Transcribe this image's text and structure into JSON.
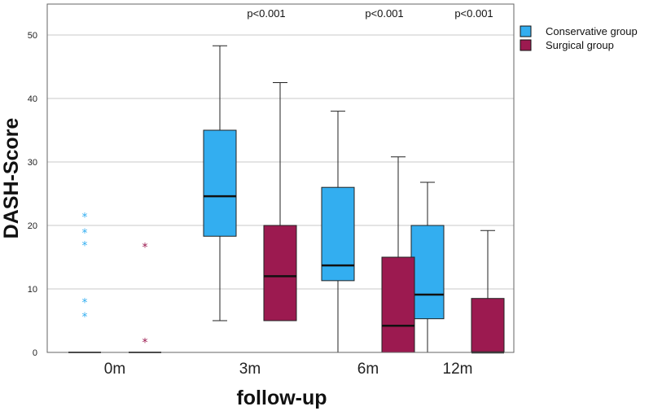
{
  "chart_data": {
    "type": "boxplot",
    "xlabel": "follow-up",
    "ylabel": "DASH-Score",
    "ylim": [
      0,
      55
    ],
    "yticks": [
      0,
      10,
      20,
      30,
      40,
      50
    ],
    "ytick_labels": [
      "0",
      "10",
      "20",
      "30",
      "40",
      "50"
    ],
    "grid": true,
    "legend_position": "top-right",
    "categories": [
      "0m",
      "3m",
      "6m",
      "12m"
    ],
    "annotations": [
      "",
      "p<0.001",
      "p<0.001",
      "p<0.001"
    ],
    "series": [
      {
        "name": "Conservative group",
        "color": "#33aef0",
        "boxes": [
          {
            "min": 0,
            "q1": 0,
            "median": 0,
            "q3": 0,
            "max": 0,
            "outliers": [
              21.5,
              19,
              17,
              8,
              5.8
            ]
          },
          {
            "min": 5,
            "q1": 18.3,
            "median": 24.6,
            "q3": 35,
            "max": 48.3,
            "outliers": []
          },
          {
            "min": 0,
            "q1": 11.3,
            "median": 13.7,
            "q3": 26,
            "max": 38,
            "outliers": []
          },
          {
            "min": 0,
            "q1": 5.3,
            "median": 9.1,
            "q3": 20,
            "max": 26.8,
            "outliers": []
          }
        ]
      },
      {
        "name": "Surgical group",
        "color": "#9c1a50",
        "boxes": [
          {
            "min": 0,
            "q1": 0,
            "median": 0,
            "q3": 0,
            "max": 0,
            "outliers": [
              16.7,
              1.7
            ]
          },
          {
            "min": 5,
            "q1": 5,
            "median": 12,
            "q3": 20,
            "max": 42.5,
            "outliers": []
          },
          {
            "min": 0,
            "q1": 0,
            "median": 4.2,
            "q3": 15,
            "max": 30.8,
            "outliers": []
          },
          {
            "min": 0,
            "q1": 0,
            "median": 0,
            "q3": 8.5,
            "max": 19.2,
            "outliers": []
          }
        ]
      }
    ]
  }
}
